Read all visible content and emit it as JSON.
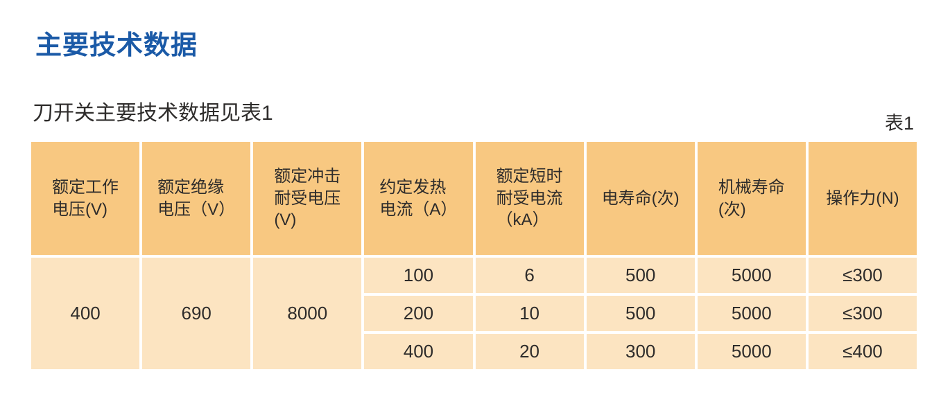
{
  "page": {
    "title": "主要技术数据",
    "subtitle": "刀开关主要技术数据见表1",
    "table_label": "表1"
  },
  "colors": {
    "title_blue": "#1B5AA7",
    "header_bg": "#F8C881",
    "row_bg": "#FCE4C1",
    "text": "#2E2C2B",
    "background": "#FFFFFF"
  },
  "table": {
    "headers": [
      "额定工作\n电压(V)",
      "额定绝缘\n电压（V）",
      "额定冲击\n耐受电压\n(V)",
      "约定发热\n电流（A）",
      "额定短时\n耐受电流\n（kA）",
      "电寿命(次)",
      "机械寿命\n(次)",
      "操作力(N)"
    ],
    "merged_values": [
      "400",
      "690",
      "8000"
    ],
    "rows": [
      [
        "100",
        "6",
        "500",
        "5000",
        "≤300"
      ],
      [
        "200",
        "10",
        "500",
        "5000",
        "≤300"
      ],
      [
        "400",
        "20",
        "300",
        "5000",
        "≤400"
      ]
    ]
  }
}
